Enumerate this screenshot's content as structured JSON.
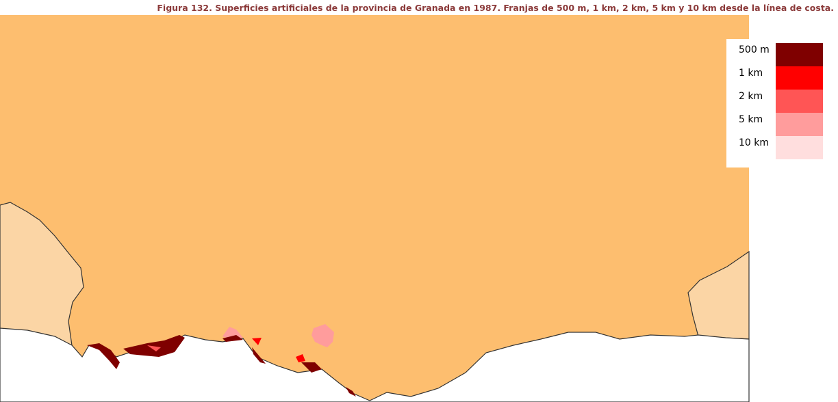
{
  "title": "Figura 132. Superficies artificiales de la provincia de Granada en 1987. Franjas de 500 m, 1 km, 2 km, 5 km y 10 km desde la línea de costa.",
  "legend": {
    "items": [
      {
        "label": "500 m",
        "color": "#7f0000"
      },
      {
        "label": "1 km",
        "color": "#ff0000"
      },
      {
        "label": "2 km",
        "color": "#ff5555"
      },
      {
        "label": "5 km",
        "color": "#ff9c9c"
      },
      {
        "label": "10 km",
        "color": "#ffdede"
      }
    ]
  }
}
